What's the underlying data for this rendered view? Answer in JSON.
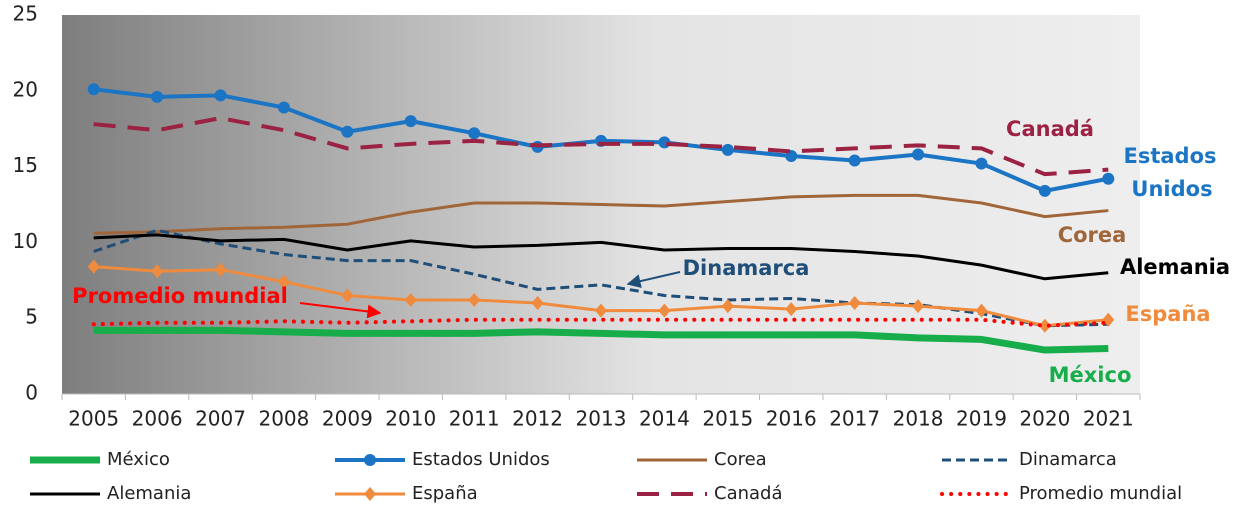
{
  "chart_data": {
    "type": "line",
    "categories": [
      "2005",
      "2006",
      "2007",
      "2008",
      "2009",
      "2010",
      "2011",
      "2012",
      "2013",
      "2014",
      "2015",
      "2016",
      "2017",
      "2018",
      "2019",
      "2020",
      "2021"
    ],
    "ylim": [
      0,
      25
    ],
    "yticks": [
      0,
      5,
      10,
      15,
      20,
      25
    ],
    "series": [
      {
        "name": "México",
        "color": "#17ad4b",
        "width": 7,
        "dash": "solid",
        "values": [
          4.2,
          4.2,
          4.2,
          4.1,
          4.0,
          4.0,
          4.0,
          4.1,
          4.0,
          3.9,
          3.9,
          3.9,
          3.9,
          3.7,
          3.6,
          2.9,
          3.0
        ]
      },
      {
        "name": "Estados Unidos",
        "color": "#1b75c4",
        "width": 4,
        "dash": "solid",
        "marker": "circle",
        "values": [
          20.1,
          19.6,
          19.7,
          18.9,
          17.3,
          18.0,
          17.2,
          16.3,
          16.7,
          16.6,
          16.1,
          15.7,
          15.4,
          15.8,
          15.2,
          13.4,
          14.2
        ]
      },
      {
        "name": "Corea",
        "color": "#a0663a",
        "width": 3,
        "dash": "solid",
        "values": [
          10.6,
          10.7,
          10.9,
          11.0,
          11.2,
          12.0,
          12.6,
          12.6,
          12.5,
          12.4,
          12.7,
          13.0,
          13.1,
          13.1,
          12.6,
          11.7,
          12.1
        ]
      },
      {
        "name": "Dinamarca",
        "color": "#1f4e79",
        "width": 3,
        "dash": "dashed",
        "values": [
          9.4,
          10.8,
          9.9,
          9.2,
          8.8,
          8.8,
          7.9,
          6.9,
          7.2,
          6.5,
          6.2,
          6.3,
          6.0,
          5.9,
          5.3,
          4.5,
          4.6
        ]
      },
      {
        "name": "Alemania",
        "color": "#000000",
        "width": 3,
        "dash": "solid",
        "values": [
          10.3,
          10.5,
          10.1,
          10.2,
          9.5,
          10.1,
          9.7,
          9.8,
          10.0,
          9.5,
          9.6,
          9.6,
          9.4,
          9.1,
          8.5,
          7.6,
          8.0
        ]
      },
      {
        "name": "España",
        "color": "#f08a3c",
        "width": 3,
        "dash": "solid",
        "marker": "diamond",
        "values": [
          8.4,
          8.1,
          8.2,
          7.4,
          6.5,
          6.2,
          6.2,
          6.0,
          5.5,
          5.5,
          5.8,
          5.6,
          6.0,
          5.8,
          5.5,
          4.5,
          4.9
        ]
      },
      {
        "name": "Canadá",
        "color": "#9b2242",
        "width": 4,
        "dash": "longdash",
        "values": [
          17.8,
          17.4,
          18.2,
          17.4,
          16.2,
          16.5,
          16.7,
          16.4,
          16.5,
          16.5,
          16.3,
          16.0,
          16.2,
          16.4,
          16.2,
          14.5,
          14.8
        ]
      },
      {
        "name": "Promedio mundial",
        "color": "#ff0000",
        "width": 4,
        "dash": "dotted",
        "values": [
          4.6,
          4.7,
          4.7,
          4.8,
          4.7,
          4.8,
          4.9,
          4.9,
          4.9,
          4.9,
          4.9,
          4.9,
          4.9,
          4.9,
          4.9,
          4.5,
          4.7
        ]
      }
    ],
    "annotations": [
      {
        "text": "Canadá",
        "color": "#9b2242"
      },
      {
        "text": "Estados",
        "color": "#1b75c4"
      },
      {
        "text": "Unidos",
        "color": "#1b75c4"
      },
      {
        "text": "Corea",
        "color": "#a0663a"
      },
      {
        "text": "Alemania",
        "color": "#000000"
      },
      {
        "text": "Dinamarca",
        "color": "#1f4e79"
      },
      {
        "text": "Promedio mundial",
        "color": "#ff0000"
      },
      {
        "text": "España",
        "color": "#f08a3c"
      },
      {
        "text": "México",
        "color": "#17ad4b"
      }
    ]
  }
}
